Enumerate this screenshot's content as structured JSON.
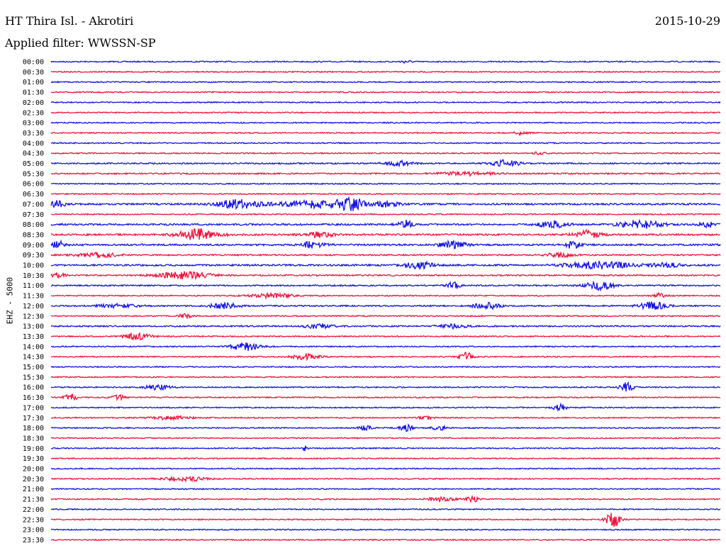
{
  "header": {
    "station": "HT Thira Isl. - Akrotiri",
    "date": "2015-10-29",
    "filter_label": "Applied filter:",
    "filter_value": "WWSSN-SP"
  },
  "channel_label": "EHZ - 5000",
  "colors": {
    "even_trace": "#1414e6",
    "odd_trace": "#f0143c"
  },
  "chart_data": {
    "type": "line",
    "title": "HT Thira Isl. - Akrotiri",
    "ylabel": "EHZ - 5000",
    "rows": [
      "00:00",
      "00:30",
      "01:00",
      "01:30",
      "02:00",
      "02:30",
      "03:00",
      "03:30",
      "04:00",
      "04:30",
      "05:00",
      "05:30",
      "06:00",
      "06:30",
      "07:00",
      "07:30",
      "08:00",
      "08:30",
      "09:00",
      "09:30",
      "10:00",
      "10:30",
      "11:00",
      "11:30",
      "12:00",
      "12:30",
      "13:00",
      "13:30",
      "14:00",
      "14:30",
      "15:00",
      "15:30",
      "16:00",
      "16:30",
      "17:00",
      "17:30",
      "18:00",
      "18:30",
      "19:00",
      "19:30",
      "20:00",
      "20:30",
      "21:00",
      "21:30",
      "22:00",
      "22:30",
      "23:00",
      "23:30"
    ],
    "base_noise": [
      1,
      1,
      1,
      1,
      1,
      1,
      1,
      1,
      1,
      1,
      1.2,
      1.2,
      1,
      1,
      1.5,
      1,
      1.5,
      1.5,
      1.5,
      1.2,
      1.5,
      1.2,
      1.2,
      1,
      1.2,
      1,
      1.2,
      1,
      1,
      1,
      1,
      1,
      1,
      1,
      1,
      1,
      1,
      1,
      1,
      1,
      1,
      1,
      1,
      1,
      1,
      1,
      1,
      1
    ],
    "events": [
      [
        [
          0.53,
          2,
          0.01
        ]
      ],
      [],
      [],
      [],
      [],
      [],
      [],
      [
        [
          0.7,
          3,
          0.01
        ]
      ],
      [],
      [
        [
          0.73,
          2,
          0.01
        ]
      ],
      [
        [
          0.52,
          4,
          0.02
        ],
        [
          0.68,
          6,
          0.02
        ]
      ],
      [
        [
          0.62,
          3,
          0.04
        ]
      ],
      [],
      [],
      [
        [
          0.01,
          6,
          0.01
        ],
        [
          0.28,
          8,
          0.03
        ],
        [
          0.39,
          6,
          0.05
        ],
        [
          0.45,
          10,
          0.02
        ],
        [
          0.5,
          5,
          0.02
        ]
      ],
      [],
      [
        [
          0.53,
          7,
          0.01
        ],
        [
          0.75,
          6,
          0.02
        ],
        [
          0.88,
          7,
          0.03
        ],
        [
          0.98,
          5,
          0.01
        ]
      ],
      [
        [
          0.22,
          10,
          0.03
        ],
        [
          0.4,
          5,
          0.02
        ],
        [
          0.8,
          7,
          0.02
        ]
      ],
      [
        [
          0.01,
          7,
          0.01
        ],
        [
          0.39,
          5,
          0.02
        ],
        [
          0.6,
          6,
          0.02
        ],
        [
          0.78,
          7,
          0.01
        ]
      ],
      [
        [
          0.07,
          4,
          0.03
        ],
        [
          0.76,
          4,
          0.02
        ]
      ],
      [
        [
          0.55,
          6,
          0.02
        ],
        [
          0.82,
          6,
          0.05
        ],
        [
          0.92,
          4,
          0.02
        ]
      ],
      [
        [
          0.01,
          4,
          0.01
        ],
        [
          0.2,
          6,
          0.04
        ]
      ],
      [
        [
          0.6,
          6,
          0.01
        ],
        [
          0.82,
          8,
          0.02
        ]
      ],
      [
        [
          0.33,
          4,
          0.03
        ],
        [
          0.91,
          4,
          0.01
        ]
      ],
      [
        [
          0.1,
          3,
          0.03
        ],
        [
          0.26,
          6,
          0.02
        ],
        [
          0.65,
          6,
          0.02
        ],
        [
          0.9,
          7,
          0.02
        ]
      ],
      [
        [
          0.2,
          4,
          0.01
        ]
      ],
      [
        [
          0.4,
          4,
          0.02
        ],
        [
          0.6,
          4,
          0.02
        ]
      ],
      [
        [
          0.13,
          6,
          0.02
        ]
      ],
      [
        [
          0.29,
          7,
          0.02
        ]
      ],
      [
        [
          0.38,
          5,
          0.02
        ],
        [
          0.62,
          8,
          0.01
        ]
      ],
      [],
      [],
      [
        [
          0.16,
          4,
          0.02
        ],
        [
          0.86,
          8,
          0.01
        ]
      ],
      [
        [
          0.03,
          6,
          0.01
        ],
        [
          0.1,
          4,
          0.01
        ]
      ],
      [
        [
          0.76,
          6,
          0.01
        ]
      ],
      [
        [
          0.18,
          3,
          0.03
        ],
        [
          0.56,
          3,
          0.01
        ]
      ],
      [
        [
          0.47,
          4,
          0.01
        ],
        [
          0.53,
          6,
          0.01
        ],
        [
          0.58,
          4,
          0.01
        ]
      ],
      [],
      [
        [
          0.38,
          6,
          0.003
        ]
      ],
      [],
      [],
      [
        [
          0.2,
          4,
          0.03
        ]
      ],
      [],
      [
        [
          0.58,
          4,
          0.02
        ],
        [
          0.63,
          5,
          0.01
        ]
      ],
      [],
      [
        [
          0.84,
          14,
          0.01
        ]
      ],
      [],
      []
    ]
  }
}
